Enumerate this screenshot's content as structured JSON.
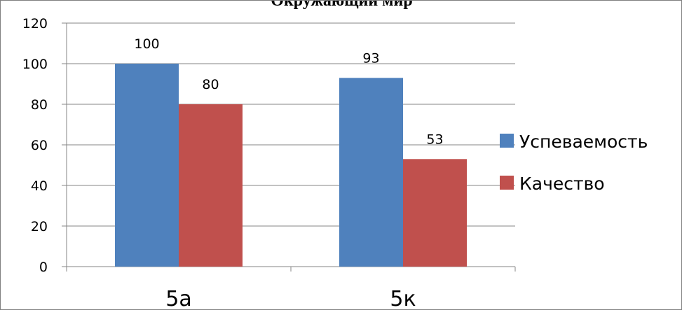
{
  "chart_data": {
    "type": "bar",
    "title": "Окружающий мир",
    "categories": [
      "5а",
      "5к"
    ],
    "series": [
      {
        "name": "Успеваемость",
        "values": [
          100,
          93
        ],
        "color": "#4f81bd"
      },
      {
        "name": "Качество",
        "values": [
          80,
          53
        ],
        "color": "#c0504d"
      }
    ],
    "ylim": [
      0,
      120
    ],
    "yticks": [
      0,
      20,
      40,
      60,
      80,
      100,
      120
    ],
    "data_labels": true,
    "grid": true,
    "legend_position": "right"
  }
}
